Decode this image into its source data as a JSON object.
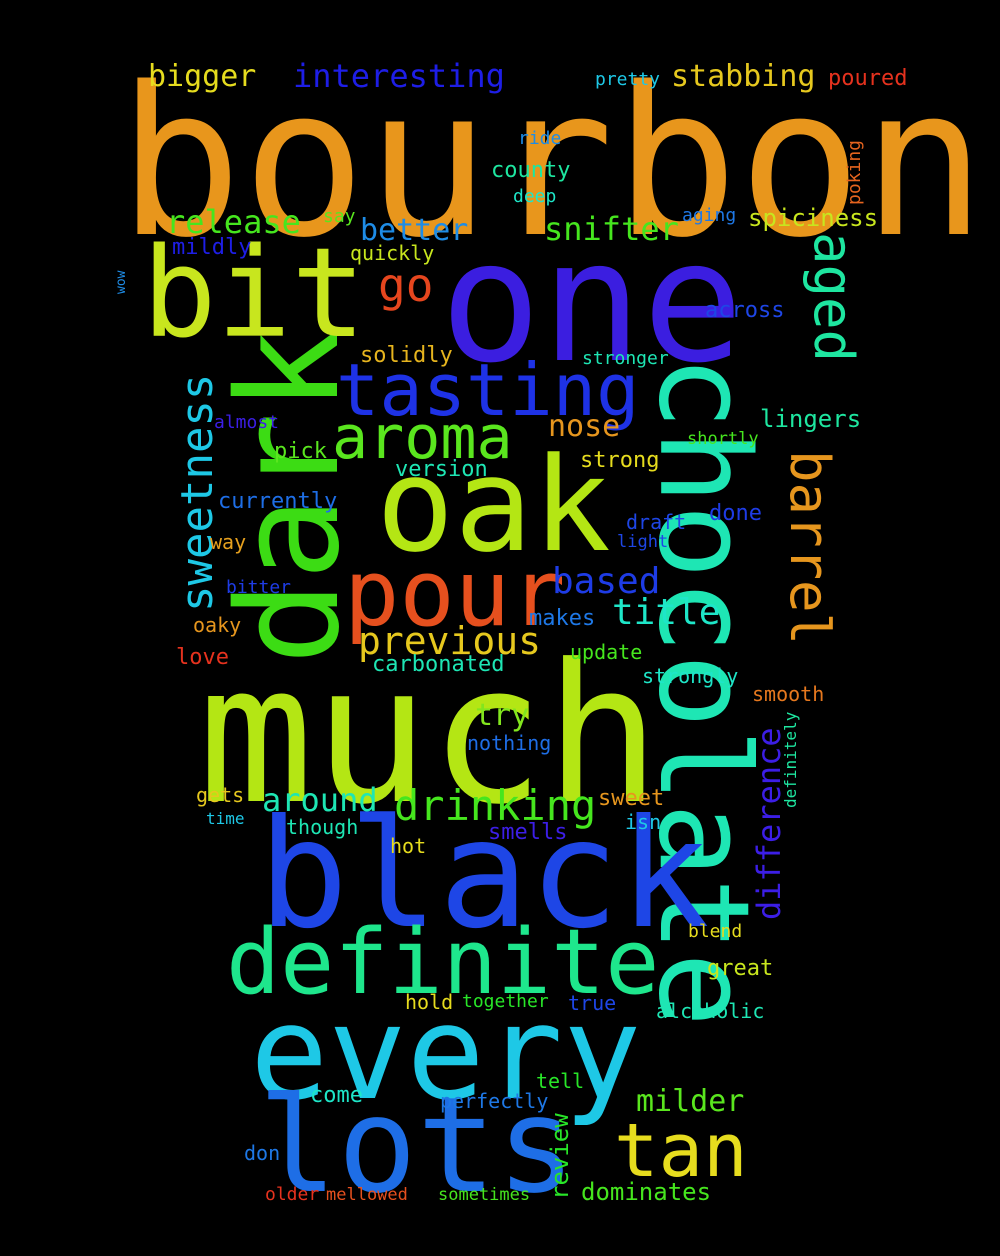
{
  "words": [
    {
      "text": "bourbon",
      "color": "#e8961c"
    },
    {
      "text": "one",
      "color": "#3b1ee0"
    },
    {
      "text": "much",
      "color": "#b4e614"
    },
    {
      "text": "chocolate",
      "color": "#1ee6b4"
    },
    {
      "text": "black",
      "color": "#1e46e6"
    },
    {
      "text": "every",
      "color": "#1ec8e6"
    },
    {
      "text": "lots",
      "color": "#1e6ee6"
    },
    {
      "text": "dark",
      "color": "#3cdc14"
    },
    {
      "text": "bit",
      "color": "#c8e61e"
    },
    {
      "text": "oak",
      "color": "#b4e614"
    },
    {
      "text": "definite",
      "color": "#1ee68c"
    },
    {
      "text": "pour",
      "color": "#e6501e"
    },
    {
      "text": "tan",
      "color": "#e6dc1e"
    },
    {
      "text": "tasting",
      "color": "#1e32e6"
    },
    {
      "text": "aroma",
      "color": "#5ae61e"
    },
    {
      "text": "barrel",
      "color": "#e6961e"
    },
    {
      "text": "aged",
      "color": "#1ee6a0"
    },
    {
      "text": "sweetness",
      "color": "#1ec8e6"
    },
    {
      "text": "previous",
      "color": "#e6c81e"
    },
    {
      "text": "drinking",
      "color": "#46e61e"
    },
    {
      "text": "difference",
      "color": "#3c1ee6"
    },
    {
      "text": "go",
      "color": "#e6461e"
    },
    {
      "text": "based",
      "color": "#1e3ce6"
    },
    {
      "text": "title",
      "color": "#1ee6c8"
    },
    {
      "text": "around",
      "color": "#1ee6b4"
    },
    {
      "text": "nose",
      "color": "#e6961e"
    },
    {
      "text": "release",
      "color": "#46e61e"
    },
    {
      "text": "snifter",
      "color": "#46e61e"
    },
    {
      "text": "better",
      "color": "#1e8ce6"
    },
    {
      "text": "interesting",
      "color": "#1e1ee6"
    },
    {
      "text": "stabbing",
      "color": "#e6c81e"
    },
    {
      "text": "bigger",
      "color": "#e6dc1e"
    },
    {
      "text": "milder",
      "color": "#5ae61e"
    },
    {
      "text": "try",
      "color": "#82e61e"
    },
    {
      "text": "review",
      "color": "#28e628"
    },
    {
      "text": "dominates",
      "color": "#46e61e"
    },
    {
      "text": "spiciness",
      "color": "#c8e61e"
    },
    {
      "text": "lingers",
      "color": "#1ee6a0"
    },
    {
      "text": "poured",
      "color": "#e6321e"
    },
    {
      "text": "county",
      "color": "#1ee6a0"
    },
    {
      "text": "pretty",
      "color": "#1ec8e6"
    },
    {
      "text": "ride",
      "color": "#1e8ce6"
    },
    {
      "text": "deep",
      "color": "#1ee6c8"
    },
    {
      "text": "poking",
      "color": "#e6641e"
    },
    {
      "text": "aging",
      "color": "#1e78e6"
    },
    {
      "text": "say",
      "color": "#5ae61e"
    },
    {
      "text": "quickly",
      "color": "#c8e61e"
    },
    {
      "text": "mildly",
      "color": "#1e1ee6"
    },
    {
      "text": "across",
      "color": "#1e46e6"
    },
    {
      "text": "solidly",
      "color": "#e6b41e"
    },
    {
      "text": "stronger",
      "color": "#1ee6b4"
    },
    {
      "text": "almost",
      "color": "#3c1ee6"
    },
    {
      "text": "shortly",
      "color": "#46e61e"
    },
    {
      "text": "pick",
      "color": "#5ae61e"
    },
    {
      "text": "version",
      "color": "#1ee6b4"
    },
    {
      "text": "strong",
      "color": "#e6dc1e"
    },
    {
      "text": "currently",
      "color": "#1e6ee6"
    },
    {
      "text": "draft",
      "color": "#1e46e6"
    },
    {
      "text": "done",
      "color": "#1e3ce6"
    },
    {
      "text": "light",
      "color": "#1e46e6"
    },
    {
      "text": "way",
      "color": "#e6a01e"
    },
    {
      "text": "bitter",
      "color": "#1e3ce6"
    },
    {
      "text": "makes",
      "color": "#1e78e6"
    },
    {
      "text": "oaky",
      "color": "#e6961e"
    },
    {
      "text": "love",
      "color": "#e6321e"
    },
    {
      "text": "carbonated",
      "color": "#1ee6b4"
    },
    {
      "text": "update",
      "color": "#46e61e"
    },
    {
      "text": "strongly",
      "color": "#1ee6c8"
    },
    {
      "text": "smooth",
      "color": "#e6781e"
    },
    {
      "text": "definitely",
      "color": "#1ee6a0"
    },
    {
      "text": "nothing",
      "color": "#1e6ee6"
    },
    {
      "text": "gets",
      "color": "#e6c81e"
    },
    {
      "text": "sweet",
      "color": "#e6961e"
    },
    {
      "text": "time",
      "color": "#1ec8e6"
    },
    {
      "text": "though",
      "color": "#1ee6b4"
    },
    {
      "text": "smells",
      "color": "#3c1ee6"
    },
    {
      "text": "isn",
      "color": "#1ec8e6"
    },
    {
      "text": "hot",
      "color": "#e6dc1e"
    },
    {
      "text": "blend",
      "color": "#e6dc1e"
    },
    {
      "text": "great",
      "color": "#c8e61e"
    },
    {
      "text": "hold",
      "color": "#e6dc1e"
    },
    {
      "text": "together",
      "color": "#28e628"
    },
    {
      "text": "true",
      "color": "#1e46e6"
    },
    {
      "text": "alcoholic",
      "color": "#1ee6b4"
    },
    {
      "text": "tell",
      "color": "#28e628"
    },
    {
      "text": "come",
      "color": "#1ee6c8"
    },
    {
      "text": "perfectly",
      "color": "#1e78e6"
    },
    {
      "text": "don",
      "color": "#1e78e6"
    },
    {
      "text": "older",
      "color": "#e6321e"
    },
    {
      "text": "mellowed",
      "color": "#e6501e"
    },
    {
      "text": "sometimes",
      "color": "#46e61e"
    },
    {
      "text": "wow",
      "color": "#1e8ce6"
    }
  ]
}
